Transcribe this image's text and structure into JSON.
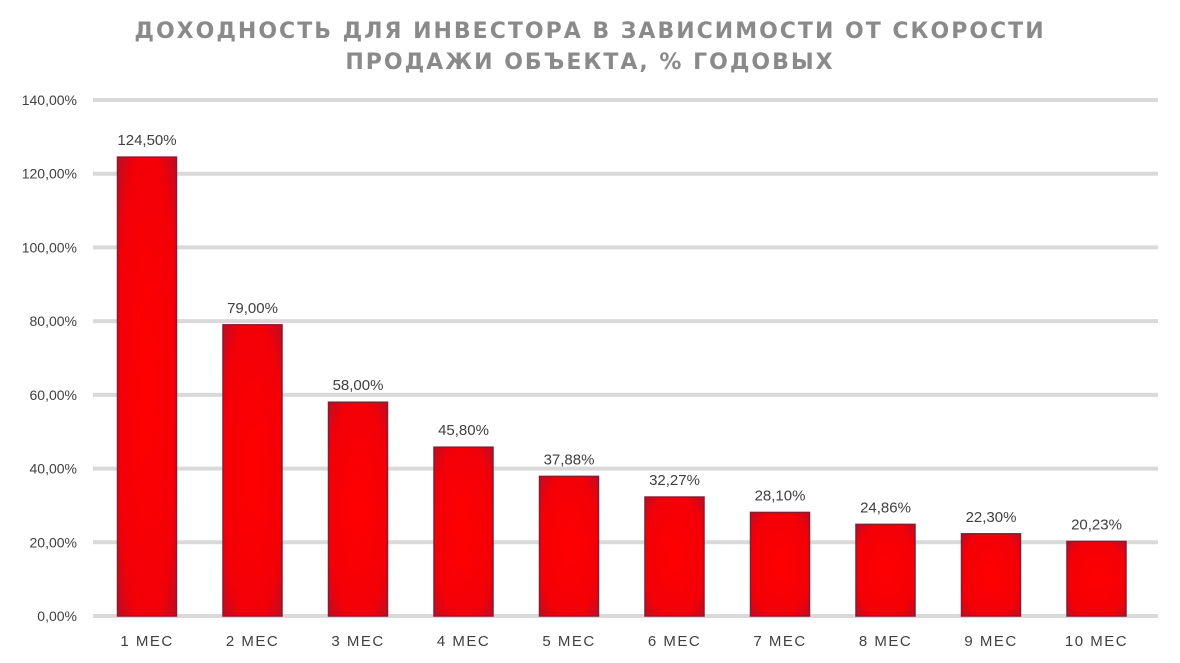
{
  "chart_data": {
    "type": "bar",
    "title_lines": [
      "ДОХОДНОСТЬ ДЛЯ ИНВЕСТОРА В ЗАВИСИМОСТИ ОТ СКОРОСТИ",
      "ПРОДАЖИ ОБЪЕКТА, % ГОДОВЫХ"
    ],
    "categories": [
      "1 МЕС",
      "2 МЕС",
      "3 МЕС",
      "4 МЕС",
      "5 МЕС",
      "6 МЕС",
      "7 МЕС",
      "8 МЕС",
      "9 МЕС",
      "10 МЕС"
    ],
    "values": [
      124.5,
      79.0,
      58.0,
      45.8,
      37.88,
      32.27,
      28.1,
      24.86,
      22.3,
      20.23
    ],
    "data_labels": [
      "124,50%",
      "79,00%",
      "58,00%",
      "45,80%",
      "37,88%",
      "32,27%",
      "28,10%",
      "24,86%",
      "22,30%",
      "20,23%"
    ],
    "yticks": [
      0,
      20,
      40,
      60,
      80,
      100,
      120,
      140
    ],
    "ytick_labels": [
      "0,00%",
      "20,00%",
      "40,00%",
      "60,00%",
      "80,00%",
      "100,00%",
      "120,00%",
      "140,00%"
    ],
    "ylim": [
      0,
      140
    ],
    "grid": true,
    "legend": "none",
    "colors": {
      "bar_center": "#ff0000",
      "bar_edge": "#8b1a2e",
      "grid": "#d9d9d9",
      "title": "#8a8a8a",
      "text": "#404040"
    }
  }
}
